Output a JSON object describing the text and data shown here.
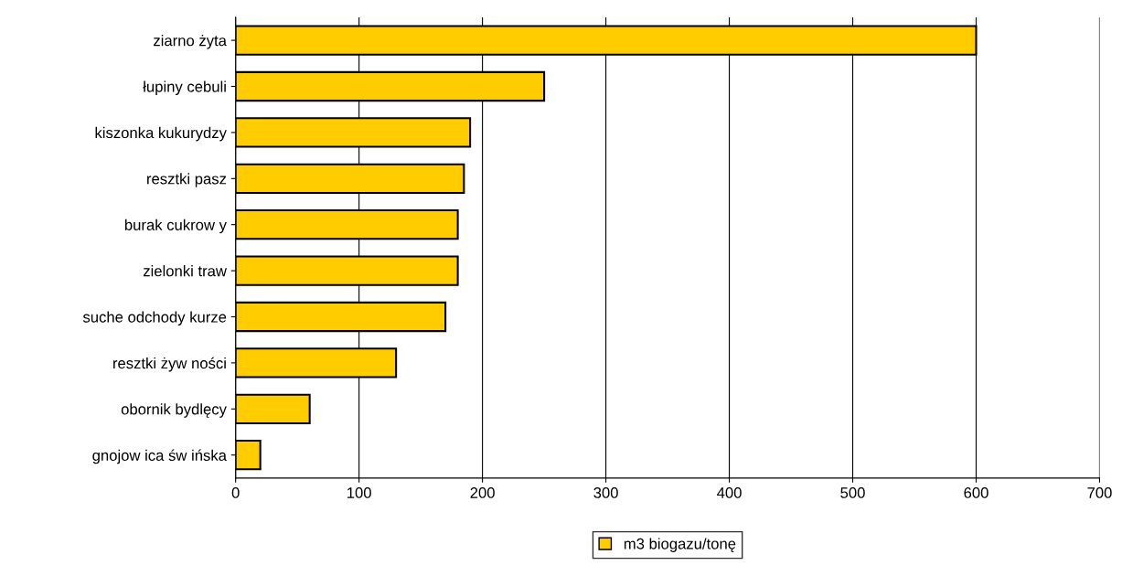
{
  "chart_data": {
    "type": "bar",
    "orientation": "horizontal",
    "categories": [
      "ziarno żyta",
      "łupiny cebuli",
      "kiszonka kukurydzy",
      "resztki pasz",
      "burak cukrow y",
      "zielonki traw",
      "suche odchody kurze",
      "resztki żyw ności",
      "obornik bydlęcy",
      "gnojow ica św ińska"
    ],
    "series": [
      {
        "name": "m3 biogazu/tonę",
        "color": "#ffcc00",
        "values": [
          600,
          250,
          190,
          185,
          180,
          180,
          170,
          130,
          60,
          20
        ]
      }
    ],
    "xlim": [
      0,
      700
    ],
    "xticks": [
      0,
      100,
      200,
      300,
      400,
      500,
      600,
      700
    ],
    "grid": "x",
    "legend": "bottom"
  }
}
